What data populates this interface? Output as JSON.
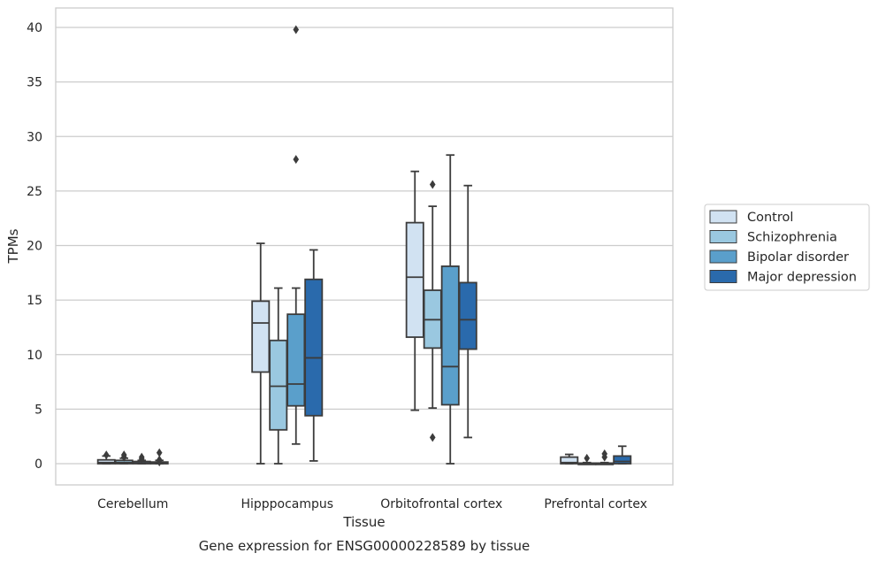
{
  "chart_data": {
    "type": "box",
    "title": "",
    "caption": "Gene expression for ENSG00000228589 by tissue",
    "xlabel": "Tissue",
    "ylabel": "TPMs",
    "ylim": [
      -1.9,
      41.8
    ],
    "yticks": [
      0,
      5,
      10,
      15,
      20,
      25,
      30,
      35,
      40
    ],
    "grid": "horizontal",
    "legend_position": "right",
    "categories": [
      "Cerebellum",
      "Hipppocampus",
      "Orbitofrontal cortex",
      "Prefrontal cortex"
    ],
    "series": [
      {
        "name": "Control",
        "color": "#d1e2f2",
        "boxes": [
          {
            "whislo": 0.0,
            "q1": 0.0,
            "med": 0.1,
            "q3": 0.35,
            "whishi": 0.7,
            "fliers": [
              0.8
            ]
          },
          {
            "whislo": 0.0,
            "q1": 8.4,
            "med": 12.9,
            "q3": 14.9,
            "whishi": 20.2,
            "fliers": []
          },
          {
            "whislo": 4.9,
            "q1": 11.6,
            "med": 17.1,
            "q3": 22.1,
            "whishi": 26.8,
            "fliers": []
          },
          {
            "whislo": 0.0,
            "q1": 0.0,
            "med": 0.1,
            "q3": 0.6,
            "whishi": 0.85,
            "fliers": []
          }
        ]
      },
      {
        "name": "Schizophrenia",
        "color": "#9ac8e0",
        "boxes": [
          {
            "whislo": 0.0,
            "q1": 0.0,
            "med": 0.1,
            "q3": 0.3,
            "whishi": 0.5,
            "fliers": [
              0.8,
              0.6
            ]
          },
          {
            "whislo": 0.0,
            "q1": 3.1,
            "med": 7.1,
            "q3": 11.3,
            "whishi": 16.1,
            "fliers": []
          },
          {
            "whislo": 5.1,
            "q1": 10.6,
            "med": 13.2,
            "q3": 15.9,
            "whishi": 23.6,
            "fliers": [
              25.6,
              2.4
            ]
          },
          {
            "whislo": 0.0,
            "q1": 0.0,
            "med": 0.0,
            "q3": 0.05,
            "whishi": 0.1,
            "fliers": [
              0.5
            ]
          }
        ]
      },
      {
        "name": "Bipolar disorder",
        "color": "#5a9fcb",
        "boxes": [
          {
            "whislo": 0.0,
            "q1": 0.0,
            "med": 0.05,
            "q3": 0.2,
            "whishi": 0.3,
            "fliers": [
              0.6,
              0.45
            ]
          },
          {
            "whislo": 1.8,
            "q1": 5.3,
            "med": 7.3,
            "q3": 13.7,
            "whishi": 16.1,
            "fliers": [
              39.8,
              27.9
            ]
          },
          {
            "whislo": 0.0,
            "q1": 5.4,
            "med": 8.9,
            "q3": 18.1,
            "whishi": 28.3,
            "fliers": []
          },
          {
            "whislo": 0.0,
            "q1": 0.0,
            "med": 0.0,
            "q3": 0.05,
            "whishi": 0.1,
            "fliers": [
              0.9,
              0.6
            ]
          }
        ]
      },
      {
        "name": "Major depression",
        "color": "#2a6aac",
        "boxes": [
          {
            "whislo": 0.0,
            "q1": 0.0,
            "med": 0.05,
            "q3": 0.15,
            "whishi": 0.3,
            "fliers": [
              1.0,
              0.35,
              0.15
            ]
          },
          {
            "whislo": 0.25,
            "q1": 4.4,
            "med": 9.7,
            "q3": 16.9,
            "whishi": 19.6,
            "fliers": []
          },
          {
            "whislo": 2.4,
            "q1": 10.5,
            "med": 13.2,
            "q3": 16.6,
            "whishi": 25.5,
            "fliers": []
          },
          {
            "whislo": 0.0,
            "q1": 0.0,
            "med": 0.2,
            "q3": 0.7,
            "whishi": 1.6,
            "fliers": []
          }
        ]
      }
    ]
  }
}
